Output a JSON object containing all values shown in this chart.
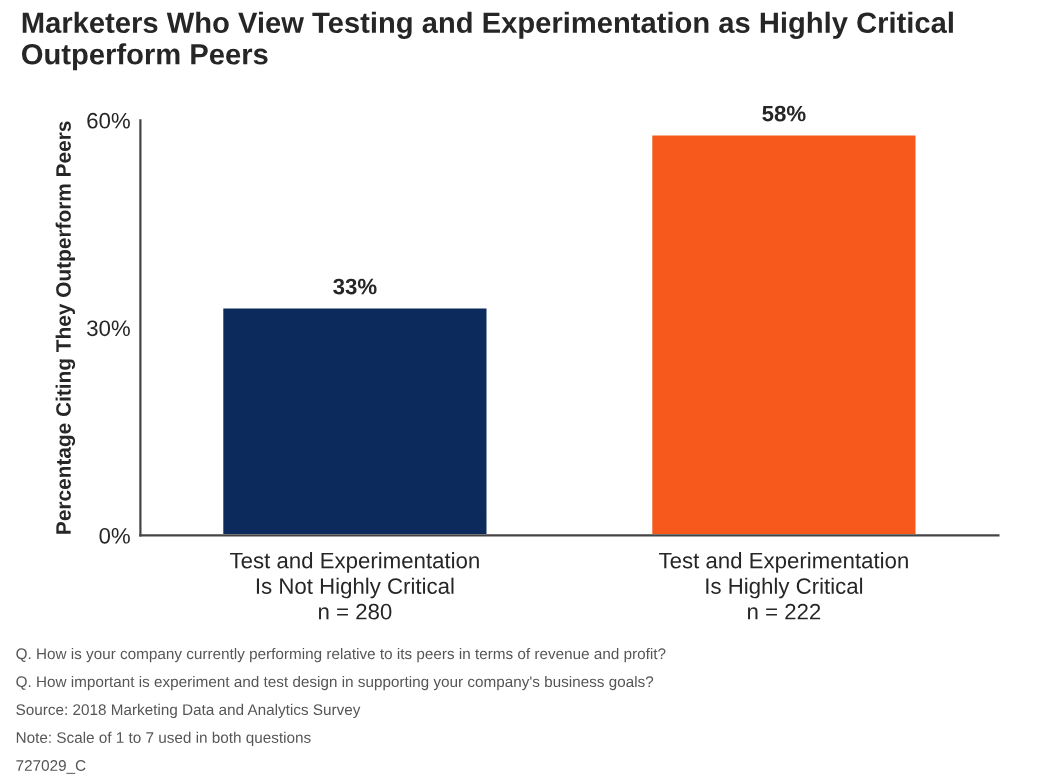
{
  "chart_data": {
    "type": "bar",
    "title": "Marketers Who View Testing and Experimentation as Highly Critical Outperform Peers",
    "ylabel": "Percentage Citing They Outperform Peers",
    "categories": [
      "Test and Experimentation\nIs Not Highly Critical\nn = 280",
      "Test and Experimentation\nIs Highly Critical\nn = 222"
    ],
    "values": [
      33,
      58
    ],
    "colors": [
      "#0c2b5c",
      "#f7581c"
    ],
    "value_labels": [
      "33%",
      "58%"
    ],
    "ylim": [
      0,
      60
    ],
    "yticks": [
      {
        "value": 0,
        "label": "0%"
      },
      {
        "value": 30,
        "label": "30%"
      },
      {
        "value": 60,
        "label": "60%"
      }
    ],
    "grid": false,
    "legend": false,
    "annotations": [
      "Q. How is your company currently performing relative to its peers in terms of revenue and profit?",
      "Q. How important is experiment and test design in supporting your company's business goals?",
      "Source: 2018 Marketing Data and Analytics Survey",
      "Note: Scale of 1 to 7 used in both questions",
      "727029_C"
    ]
  }
}
